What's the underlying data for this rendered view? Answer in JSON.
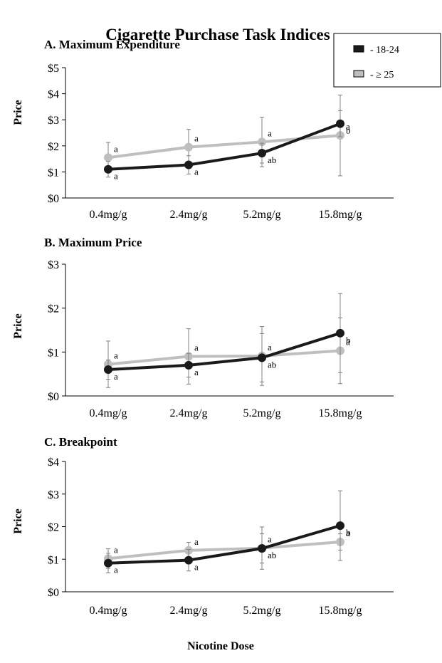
{
  "figure": {
    "title": "Cigarette Purchase Task Indices",
    "xlabel": "Nicotine Dose"
  },
  "legend": [
    {
      "label": "- 18-24",
      "color": "#1a1a1a"
    },
    {
      "label": "- ≥ 25",
      "color": "#bfbfbf"
    }
  ],
  "colors": {
    "series_18_24": "#1a1a1a",
    "series_25_plus": "#bfbfbf",
    "error_bar": "#808080"
  },
  "chart_data": [
    {
      "type": "line",
      "title": "A. Maximum Expenditure",
      "ylabel": "Price",
      "xlabel": "",
      "categories": [
        "0.4mg/g",
        "2.4mg/g",
        "5.2mg/g",
        "15.8mg/g"
      ],
      "ylim": [
        0,
        5
      ],
      "yticks": [
        "$0",
        "$1",
        "$2",
        "$3",
        "$4",
        "$5"
      ],
      "series": [
        {
          "name": "18-24",
          "values": [
            1.1,
            1.27,
            1.72,
            2.85
          ],
          "err": [
            0.3,
            0.35,
            0.38,
            0.5
          ],
          "labels": [
            "a",
            "a",
            "ab",
            "b"
          ]
        },
        {
          "name": "≥ 25",
          "values": [
            1.55,
            1.95,
            2.15,
            2.4
          ],
          "err": [
            0.58,
            0.68,
            0.95,
            1.55
          ],
          "labels": [
            "a",
            "a",
            "a",
            "a"
          ]
        }
      ]
    },
    {
      "type": "line",
      "title": "B. Maximum Price",
      "ylabel": "Price",
      "xlabel": "",
      "categories": [
        "0.4mg/g",
        "2.4mg/g",
        "5.2mg/g",
        "15.8mg/g"
      ],
      "ylim": [
        0,
        3
      ],
      "yticks": [
        "$0",
        "$1",
        "$2",
        "$3"
      ],
      "series": [
        {
          "name": "18-24",
          "values": [
            0.6,
            0.7,
            0.87,
            1.43
          ],
          "err": [
            0.22,
            0.27,
            0.55,
            0.9
          ],
          "labels": [
            "a",
            "a",
            "ab",
            "b"
          ]
        },
        {
          "name": "≥ 25",
          "values": [
            0.72,
            0.9,
            0.91,
            1.03
          ],
          "err": [
            0.53,
            0.63,
            0.67,
            0.75
          ],
          "labels": [
            "a",
            "a",
            "a",
            "a"
          ]
        }
      ]
    },
    {
      "type": "line",
      "title": "C. Breakpoint",
      "ylabel": "Price",
      "xlabel": "",
      "categories": [
        "0.4mg/g",
        "2.4mg/g",
        "5.2mg/g",
        "15.8mg/g"
      ],
      "ylim": [
        0,
        4
      ],
      "yticks": [
        "$0",
        "$1",
        "$2",
        "$3",
        "$4"
      ],
      "series": [
        {
          "name": "18-24",
          "values": [
            0.88,
            0.97,
            1.33,
            2.03
          ],
          "err": [
            0.3,
            0.33,
            0.45,
            1.07
          ],
          "labels": [
            "a",
            "a",
            "ab",
            "b"
          ]
        },
        {
          "name": "≥ 25",
          "values": [
            1.02,
            1.27,
            1.34,
            1.53
          ],
          "err": [
            0.3,
            0.25,
            0.65,
            0.25
          ],
          "labels": [
            "a",
            "a",
            "a",
            "a"
          ]
        }
      ]
    }
  ]
}
